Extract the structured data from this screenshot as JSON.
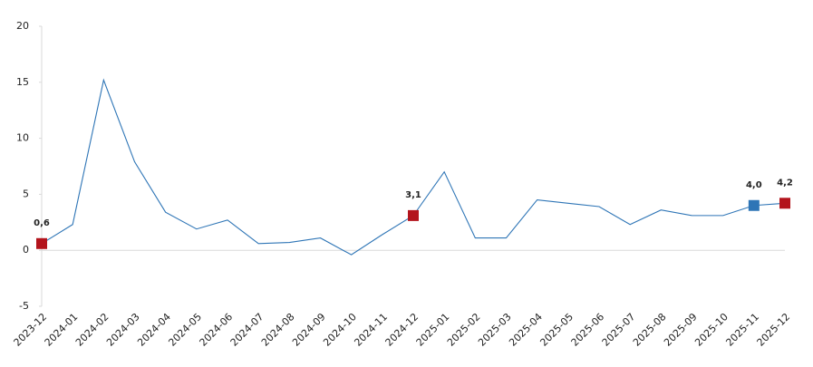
{
  "chart_data": {
    "type": "line",
    "categories": [
      "2023-12",
      "2024-01",
      "2024-02",
      "2024-03",
      "2024-04",
      "2024-05",
      "2024-06",
      "2024-07",
      "2024-08",
      "2024-09",
      "2024-10",
      "2024-11",
      "2024-12",
      "2025-01",
      "2025-02",
      "2025-03",
      "2025-04",
      "2025-05",
      "2025-06",
      "2025-07",
      "2025-08",
      "2025-09",
      "2025-10",
      "2025-11",
      "2025-12"
    ],
    "values": [
      0.6,
      2.3,
      15.2,
      7.9,
      3.4,
      1.9,
      2.7,
      0.6,
      0.7,
      1.1,
      -0.4,
      1.4,
      3.1,
      7.0,
      1.1,
      1.1,
      4.5,
      4.2,
      3.9,
      2.3,
      3.6,
      3.1,
      3.1,
      4.0,
      4.2
    ],
    "value_labels": [
      "0,6",
      null,
      null,
      null,
      null,
      null,
      null,
      null,
      null,
      null,
      null,
      null,
      "3,1",
      null,
      null,
      null,
      null,
      null,
      null,
      null,
      null,
      null,
      null,
      "4,0",
      "4,2"
    ],
    "marker_colors": [
      "#b3141c",
      null,
      null,
      null,
      null,
      null,
      null,
      null,
      null,
      null,
      null,
      null,
      "#b3141c",
      null,
      null,
      null,
      null,
      null,
      null,
      null,
      null,
      null,
      null,
      "#2e75b6",
      "#b3141c"
    ],
    "color": "#2e75b6",
    "ylim": [
      -5,
      20
    ],
    "yticks": [
      -5,
      0,
      5,
      10,
      15,
      20
    ]
  }
}
